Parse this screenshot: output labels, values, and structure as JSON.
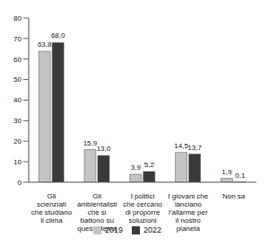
{
  "chart_data": {
    "type": "bar",
    "categories": [
      "Gli scienziati che studiano il clima",
      "Gli ambientalisti che si battono su questo tema",
      "I politici che cercano di proporre soluzioni",
      "I giovani che lanciano l’allarme per il nostro pianeta",
      "Non sa"
    ],
    "series": [
      {
        "name": "2019",
        "color": "#c4c4c4",
        "values": [
          63.8,
          15.9,
          3.9,
          14.5,
          1.9
        ],
        "value_labels": [
          "63,8",
          "15,9",
          "3,9",
          "14,5",
          "1,9"
        ]
      },
      {
        "name": "2022",
        "color": "#3a3a3a",
        "values": [
          68.0,
          13.0,
          5.2,
          13.7,
          0.1
        ],
        "value_labels": [
          "68,0",
          "13,0",
          "5,2",
          "13,7",
          "0,1"
        ]
      }
    ],
    "ylim": [
      0,
      80
    ],
    "yticks": [
      0,
      10,
      20,
      30,
      40,
      50,
      60,
      70,
      80
    ],
    "grid": false,
    "legend": "bottom",
    "data_labels": true
  }
}
